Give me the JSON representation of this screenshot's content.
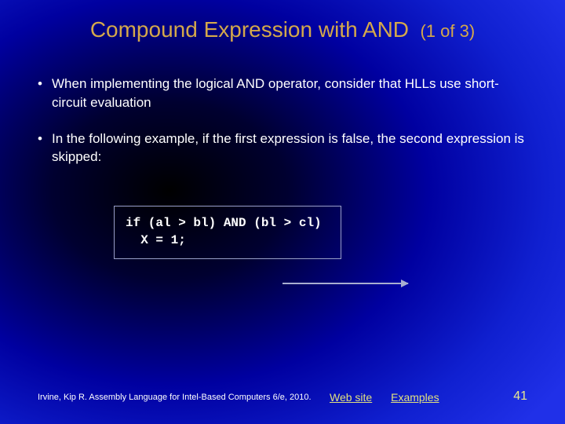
{
  "title": "Compound Expression with AND",
  "subtitle": "(1 of 3)",
  "bullets": [
    "When implementing the logical AND operator, consider that HLLs use short-circuit evaluation",
    "In the following example, if the first expression is false, the second expression is skipped:"
  ],
  "code": "if (al > bl) AND (bl > cl)\n  X = 1;",
  "footer_cite": "Irvine, Kip R. Assembly Language for Intel-Based Computers 6/e, 2010.",
  "link_web": "Web site",
  "link_examples": "Examples",
  "page_num": "41",
  "colors": {
    "title": "#d4a84b",
    "text": "#ffffff",
    "link": "#e0e080",
    "pagenum": "#e8e890",
    "box_border": "#9aa0c8",
    "arrow": "#a8aed0"
  }
}
